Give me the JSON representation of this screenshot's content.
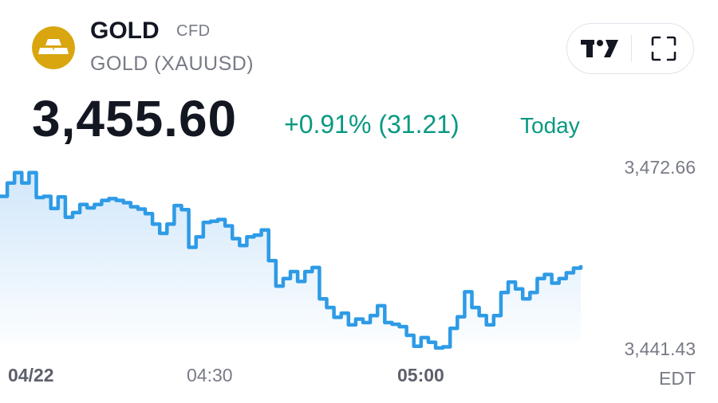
{
  "header": {
    "symbol": "GOLD",
    "type": "CFD",
    "fullname": "GOLD (XAUUSD)"
  },
  "quote": {
    "price": "3,455.60",
    "change": "+0.91% (31.21)",
    "period": "Today"
  },
  "colors": {
    "accent_up": "#089981",
    "line": "#2e9be6",
    "fill": "#d6ebfb",
    "logo": "#d9a60f"
  },
  "icons": {
    "logo": "gold-bars-icon",
    "tradingview": "tradingview-logo-icon",
    "fullscreen": "fullscreen-icon"
  },
  "chart_data": {
    "type": "area",
    "series": [
      {
        "values": [
          3467.5,
          3469.8,
          3471.6,
          3469.8,
          3471.6,
          3467.3,
          3467.5,
          3465.4,
          3467.4,
          3463.9,
          3464.7,
          3466.1,
          3465.5,
          3466.1,
          3466.8,
          3467.1,
          3466.8,
          3466.4,
          3465.7,
          3465.3,
          3464.5,
          3462.7,
          3461.1,
          3462.7,
          3465.9,
          3465.2,
          3458.7,
          3460.5,
          3463.0,
          3463.2,
          3463.5,
          3462.4,
          3460.2,
          3459.0,
          3460.5,
          3460.8,
          3461.7,
          3456.4,
          3452.0,
          3453.3,
          3454.5,
          3452.8,
          3454.5,
          3455.2,
          3449.8,
          3448.3,
          3446.6,
          3447.3,
          3445.3,
          3446.3,
          3445.7,
          3446.9,
          3448.6,
          3445.7,
          3445.4,
          3445.0,
          3443.5,
          3441.6,
          3443.1,
          3442.3,
          3441.3,
          3441.5,
          3444.7,
          3446.7,
          3451.0,
          3448.3,
          3446.9,
          3445.3,
          3446.9,
          3450.9,
          3452.7,
          3451.5,
          3449.8,
          3450.9,
          3453.3,
          3454.0,
          3452.5,
          3453.3,
          3454.3,
          3455.1,
          3455.6
        ]
      }
    ],
    "yticks": [
      "3,472.66",
      "3,441.43"
    ],
    "yrange": [
      3441.43,
      3472.66
    ],
    "xticks": [
      {
        "label": "04/22",
        "index": 0
      },
      {
        "label": "04:30",
        "index": 36
      },
      {
        "label": "05:00",
        "index": 66
      }
    ],
    "timezone": "EDT",
    "grid": false
  }
}
